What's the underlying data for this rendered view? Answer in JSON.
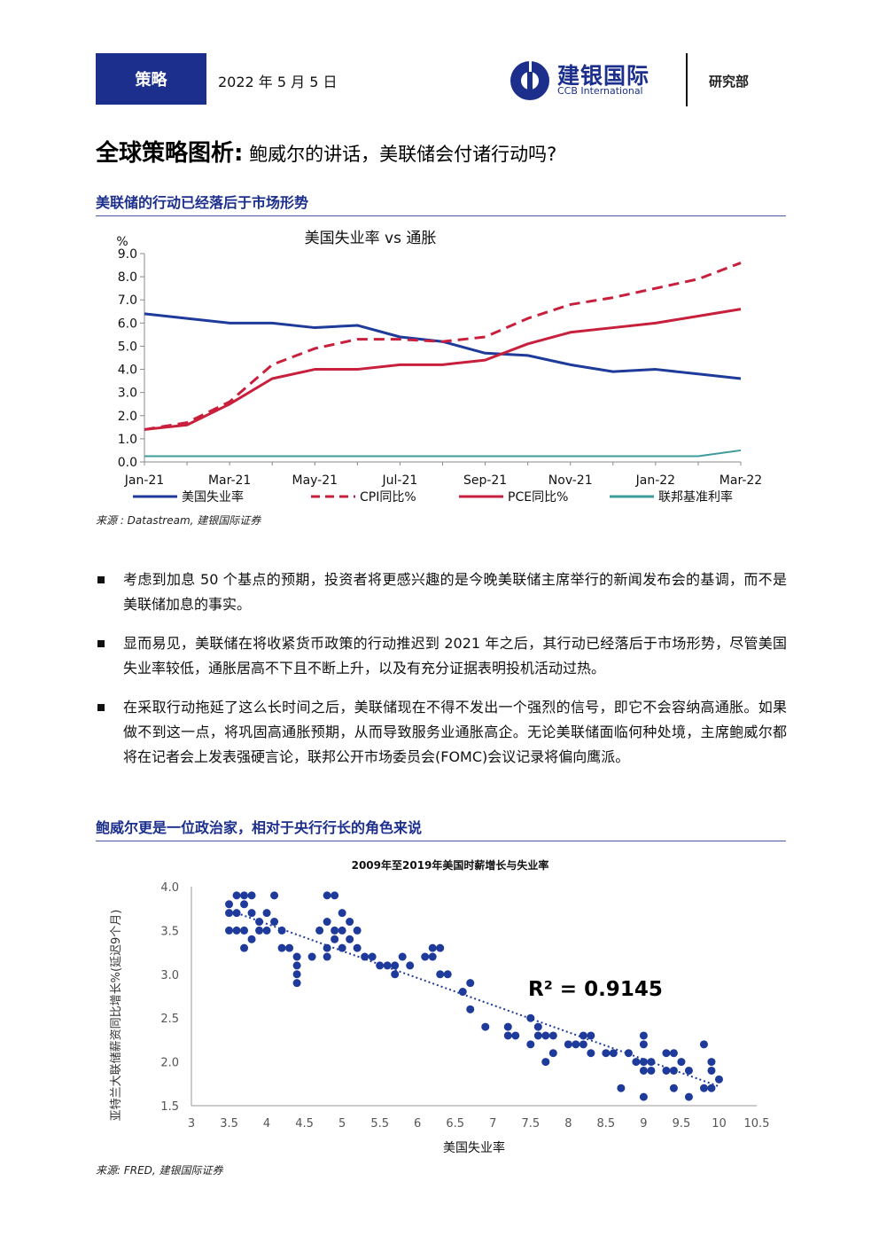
{
  "header": {
    "badge": "策略",
    "date": "2022 年 5 月 5 日",
    "logo_cn": "建银国际",
    "logo_en": "CCB International",
    "dept": "研究部",
    "brand_color": "#1c2f8c"
  },
  "title": {
    "bold": "全球策略图析:",
    "rest": " 鲍威尔的讲话，美联储会付诸行动吗?"
  },
  "section1": {
    "heading": "美联储的行动已经落后于市场形势",
    "source": "来源 : Datastream, 建银国际证券"
  },
  "section2": {
    "heading": "鲍威尔更是一位政治家，相对于央行行长的角色来说",
    "source": "来源: FRED, 建银国际证券"
  },
  "bullets": [
    "考虑到加息 50 个基点的预期，投资者将更感兴趣的是今晚美联储主席举行的新闻发布会的基调，而不是美联储加息的事实。",
    "显而易见，美联储在将收紧货币政策的行动推迟到 2021 年之后，其行动已经落后于市场形势，尽管美国失业率较低，通胀居高不下且不断上升，以及有充分证据表明投机活动过热。",
    "在采取行动拖延了这么长时间之后，美联储现在不得不发出一个强烈的信号，即它不会容纳高通胀。如果做不到这一点，将巩固高通胀预期，从而导致服务业通胀高企。无论美联储面临何种处境，主席鲍威尔都将在记者会上发表强硬言论，联邦公开市场委员会(FOMC)会议记录将偏向鹰派。"
  ],
  "chart_data": [
    {
      "type": "line",
      "title": "美国失业率 vs 通胀",
      "ylabel": "%",
      "ylim": [
        0,
        9
      ],
      "yticks": [
        "0.0",
        "1.0",
        "2.0",
        "3.0",
        "4.0",
        "5.0",
        "6.0",
        "7.0",
        "8.0",
        "9.0"
      ],
      "x": [
        "Jan-21",
        "Feb-21",
        "Mar-21",
        "Apr-21",
        "May-21",
        "Jun-21",
        "Jul-21",
        "Aug-21",
        "Sep-21",
        "Oct-21",
        "Nov-21",
        "Dec-21",
        "Jan-22",
        "Feb-22",
        "Mar-22"
      ],
      "xtick_labels": [
        "Jan-21",
        "Mar-21",
        "May-21",
        "Jul-21",
        "Sep-21",
        "Nov-21",
        "Jan-22",
        "Mar-22"
      ],
      "legend_position": "bottom",
      "grid": false,
      "series": [
        {
          "name": "美国失业率",
          "color": "#1e3a9a",
          "style": "solid",
          "values": [
            6.4,
            6.2,
            6.0,
            6.0,
            5.8,
            5.9,
            5.4,
            5.2,
            4.7,
            4.6,
            4.2,
            3.9,
            4.0,
            3.8,
            3.6
          ]
        },
        {
          "name": "CPI同比%",
          "color": "#c8203c",
          "style": "dashed",
          "values": [
            1.4,
            1.7,
            2.6,
            4.2,
            4.9,
            5.3,
            5.3,
            5.2,
            5.4,
            6.2,
            6.8,
            7.1,
            7.5,
            7.9,
            8.6
          ]
        },
        {
          "name": "PCE同比%",
          "color": "#c8203c",
          "style": "solid",
          "values": [
            1.4,
            1.6,
            2.5,
            3.6,
            4.0,
            4.0,
            4.2,
            4.2,
            4.4,
            5.1,
            5.6,
            5.8,
            6.0,
            6.3,
            6.6
          ]
        },
        {
          "name": "联邦基准利率",
          "color": "#3e9b9b",
          "style": "solid",
          "values": [
            0.25,
            0.25,
            0.25,
            0.25,
            0.25,
            0.25,
            0.25,
            0.25,
            0.25,
            0.25,
            0.25,
            0.25,
            0.25,
            0.25,
            0.5
          ]
        }
      ]
    },
    {
      "type": "scatter",
      "title": "2009年至2019年美国时薪增长与失业率",
      "xlabel": "美国失业率",
      "ylabel": "亚特兰大联储薪资同比增长%(延迟9个月)",
      "xlim": [
        3,
        10.5
      ],
      "ylim": [
        1.5,
        4.0
      ],
      "xticks": [
        "3",
        "3.5",
        "4",
        "4.5",
        "5",
        "5.5",
        "6",
        "6.5",
        "7",
        "7.5",
        "8",
        "8.5",
        "9",
        "9.5",
        "10",
        "10.5"
      ],
      "yticks": [
        "1.5",
        "2.0",
        "2.5",
        "3.0",
        "3.5",
        "4.0"
      ],
      "annotation": "R² = 0.9145",
      "trendline": {
        "style": "dotted",
        "color": "#1e3a9a",
        "x": [
          3.6,
          10.0
        ],
        "y": [
          3.7,
          1.72
        ]
      },
      "point_color": "#1e3a9a",
      "points": [
        [
          3.5,
          3.8
        ],
        [
          3.5,
          3.7
        ],
        [
          3.5,
          3.5
        ],
        [
          3.6,
          3.9
        ],
        [
          3.6,
          3.7
        ],
        [
          3.6,
          3.5
        ],
        [
          3.7,
          3.9
        ],
        [
          3.7,
          3.8
        ],
        [
          3.7,
          3.5
        ],
        [
          3.7,
          3.3
        ],
        [
          3.8,
          3.9
        ],
        [
          3.8,
          3.7
        ],
        [
          3.8,
          3.4
        ],
        [
          3.9,
          3.6
        ],
        [
          3.9,
          3.5
        ],
        [
          4.0,
          3.7
        ],
        [
          4.0,
          3.5
        ],
        [
          4.1,
          3.9
        ],
        [
          4.1,
          3.6
        ],
        [
          4.2,
          3.5
        ],
        [
          4.2,
          3.3
        ],
        [
          4.3,
          3.3
        ],
        [
          4.4,
          3.2
        ],
        [
          4.4,
          3.1
        ],
        [
          4.4,
          3.0
        ],
        [
          4.4,
          2.9
        ],
        [
          4.6,
          3.2
        ],
        [
          4.7,
          3.5
        ],
        [
          4.8,
          3.9
        ],
        [
          4.8,
          3.6
        ],
        [
          4.8,
          3.3
        ],
        [
          4.8,
          3.2
        ],
        [
          4.9,
          3.9
        ],
        [
          4.9,
          3.4
        ],
        [
          4.9,
          3.5
        ],
        [
          5.0,
          3.7
        ],
        [
          5.0,
          3.5
        ],
        [
          5.0,
          3.3
        ],
        [
          5.1,
          3.6
        ],
        [
          5.1,
          3.4
        ],
        [
          5.2,
          3.5
        ],
        [
          5.2,
          3.3
        ],
        [
          5.3,
          3.2
        ],
        [
          5.4,
          3.2
        ],
        [
          5.5,
          3.1
        ],
        [
          5.6,
          3.1
        ],
        [
          5.7,
          3.1
        ],
        [
          5.7,
          3.0
        ],
        [
          5.8,
          3.2
        ],
        [
          5.9,
          3.1
        ],
        [
          6.1,
          3.2
        ],
        [
          6.2,
          3.3
        ],
        [
          6.2,
          3.2
        ],
        [
          6.3,
          3.3
        ],
        [
          6.3,
          3.0
        ],
        [
          6.4,
          3.0
        ],
        [
          6.6,
          2.8
        ],
        [
          6.7,
          2.9
        ],
        [
          6.7,
          2.6
        ],
        [
          6.9,
          2.4
        ],
        [
          7.2,
          2.4
        ],
        [
          7.2,
          2.3
        ],
        [
          7.3,
          2.3
        ],
        [
          7.5,
          2.5
        ],
        [
          7.5,
          2.2
        ],
        [
          7.6,
          2.4
        ],
        [
          7.6,
          2.3
        ],
        [
          7.7,
          2.3
        ],
        [
          7.7,
          2.0
        ],
        [
          7.8,
          2.3
        ],
        [
          7.8,
          2.1
        ],
        [
          8.0,
          2.2
        ],
        [
          8.1,
          2.2
        ],
        [
          8.2,
          2.3
        ],
        [
          8.2,
          2.2
        ],
        [
          8.3,
          2.3
        ],
        [
          8.3,
          2.1
        ],
        [
          8.5,
          2.1
        ],
        [
          8.6,
          2.1
        ],
        [
          8.7,
          1.7
        ],
        [
          8.8,
          2.1
        ],
        [
          8.9,
          2.0
        ],
        [
          9.0,
          2.3
        ],
        [
          9.0,
          2.2
        ],
        [
          9.0,
          2.0
        ],
        [
          9.0,
          1.9
        ],
        [
          9.0,
          1.6
        ],
        [
          9.1,
          2.0
        ],
        [
          9.1,
          1.9
        ],
        [
          9.3,
          2.1
        ],
        [
          9.3,
          1.9
        ],
        [
          9.4,
          2.1
        ],
        [
          9.4,
          1.9
        ],
        [
          9.4,
          1.7
        ],
        [
          9.5,
          2.0
        ],
        [
          9.6,
          1.9
        ],
        [
          9.6,
          1.6
        ],
        [
          9.8,
          2.2
        ],
        [
          9.8,
          1.7
        ],
        [
          9.9,
          2.0
        ],
        [
          9.9,
          1.9
        ],
        [
          9.9,
          1.7
        ],
        [
          10.0,
          1.8
        ]
      ]
    }
  ]
}
